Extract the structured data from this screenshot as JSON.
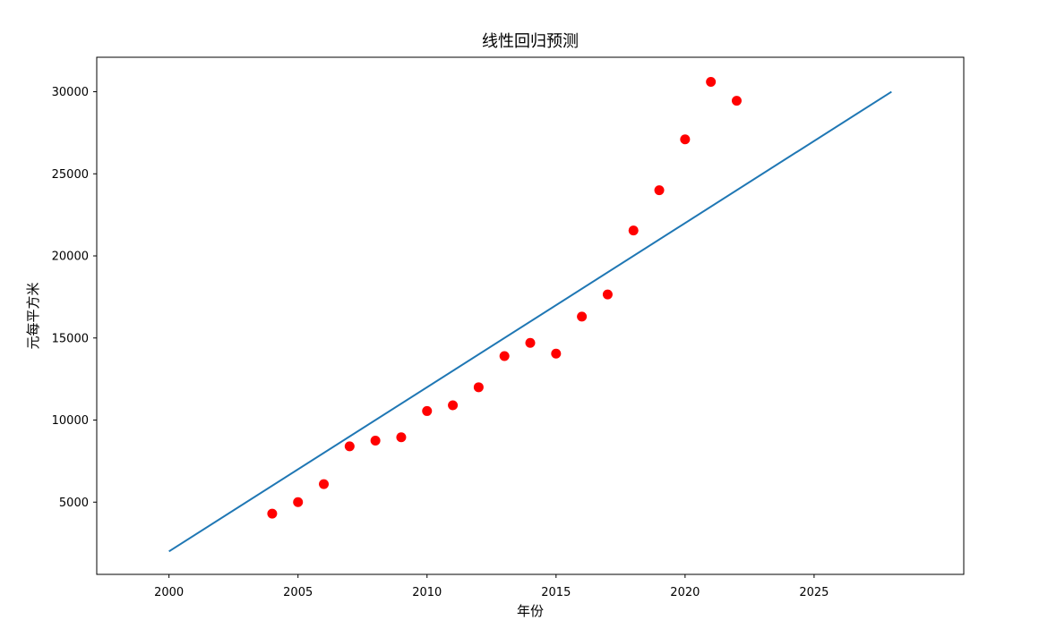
{
  "chart_data": {
    "type": "scatter",
    "title": "线性回归预测",
    "xlabel": "年份",
    "ylabel": "元每平方米",
    "xlim": [
      1997.2,
      2030.8
    ],
    "ylim": [
      600,
      32100
    ],
    "xticks": [
      2000,
      2005,
      2010,
      2015,
      2020,
      2025
    ],
    "yticks": [
      5000,
      10000,
      15000,
      20000,
      25000,
      30000
    ],
    "grid": false,
    "series": [
      {
        "kind": "scatter",
        "color": "#ff0000",
        "x": [
          2004,
          2005,
          2006,
          2007,
          2008,
          2009,
          2010,
          2011,
          2012,
          2013,
          2014,
          2015,
          2016,
          2017,
          2018,
          2019,
          2020,
          2021,
          2022
        ],
        "y": [
          4300,
          5000,
          6100,
          8400,
          8750,
          8950,
          10550,
          10900,
          12000,
          13900,
          14700,
          14050,
          16300,
          17650,
          21550,
          24000,
          27100,
          30600,
          29450
        ]
      },
      {
        "kind": "line",
        "color": "#1f77b4",
        "x": [
          2000,
          2028
        ],
        "y": [
          2000,
          30000
        ]
      }
    ]
  }
}
